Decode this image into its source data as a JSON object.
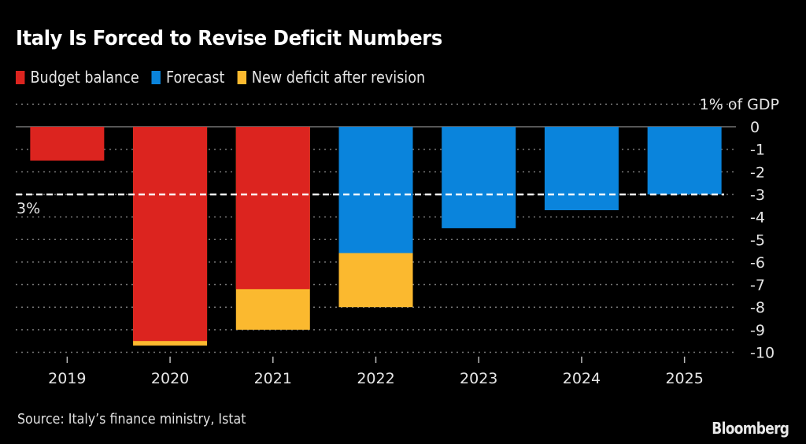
{
  "chart_data": {
    "type": "bar",
    "title": "Italy Is Forced to Revise Deficit Numbers",
    "ylabel": "% of GDP",
    "y_unit_label": "1% of GDP",
    "xlabel": "",
    "ylim": [
      -10,
      1
    ],
    "yticks": [
      0,
      -1,
      -2,
      -3,
      -4,
      -5,
      -6,
      -7,
      -8,
      -9,
      -10
    ],
    "ytick_labels": [
      "0",
      "-1",
      "-2",
      "-3",
      "-4",
      "-5",
      "-6",
      "-7",
      "-8",
      "-9",
      "-10"
    ],
    "grid": true,
    "legend_position": "top-left",
    "categories": [
      "2019",
      "2020",
      "2021",
      "2022",
      "2023",
      "2024",
      "2025"
    ],
    "series": [
      {
        "name": "Budget balance",
        "color": "#dc241f",
        "values": [
          -1.5,
          -9.5,
          -7.2,
          null,
          null,
          null,
          null
        ]
      },
      {
        "name": "Forecast",
        "color": "#0a84dc",
        "values": [
          null,
          null,
          null,
          -5.6,
          -4.5,
          -3.7,
          -3.0
        ]
      },
      {
        "name": "New deficit after revision",
        "color": "#fbb92f",
        "values": [
          null,
          -9.7,
          -9.0,
          -8.0,
          null,
          null,
          null
        ]
      }
    ],
    "reference_line": {
      "value": -3,
      "label": "3%"
    }
  },
  "legend": [
    {
      "label": "Budget balance",
      "color": "#dc241f"
    },
    {
      "label": "Forecast",
      "color": "#0a84dc"
    },
    {
      "label": "New deficit after revision",
      "color": "#fbb92f"
    }
  ],
  "source": "Source: Italy’s finance ministry, Istat",
  "brand": "Bloomberg"
}
